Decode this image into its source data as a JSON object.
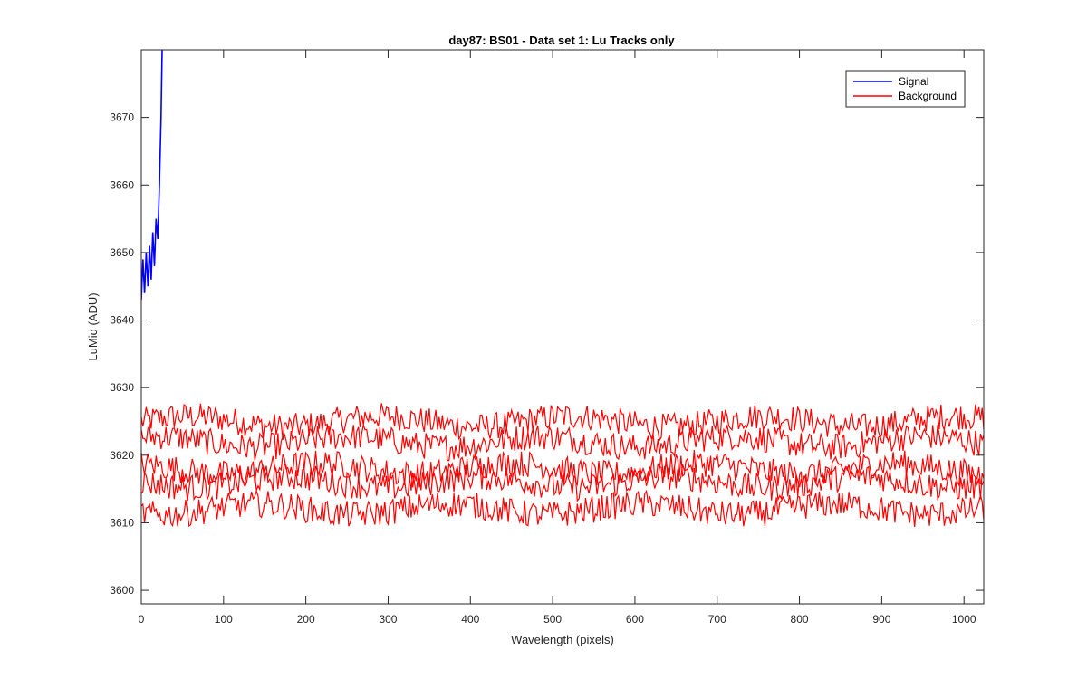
{
  "chart_data": {
    "type": "line",
    "title": "day87: BS01 - Data set 1: Lu Tracks only",
    "xlabel": "Wavelength (pixels)",
    "ylabel": "LuMid (ADU)",
    "xlim": [
      0,
      1024
    ],
    "ylim": [
      3598,
      3680
    ],
    "xticks": [
      0,
      100,
      200,
      300,
      400,
      500,
      600,
      700,
      800,
      900,
      1000
    ],
    "yticks": [
      3600,
      3610,
      3620,
      3630,
      3640,
      3650,
      3660,
      3670
    ],
    "grid": false,
    "legend_position": "top-right",
    "series": [
      {
        "name": "Signal",
        "color": "#0000ff",
        "x": [
          0,
          2,
          4,
          6,
          8,
          10,
          12,
          14,
          16,
          18,
          20,
          22,
          24,
          26
        ],
        "values": [
          3643,
          3649,
          3644,
          3650,
          3645,
          3651,
          3646,
          3653,
          3648,
          3655,
          3652,
          3660,
          3670,
          3685
        ]
      },
      {
        "name": "Background",
        "color": "#ff0000",
        "tracks": [
          {
            "baseline": 3625,
            "noise": 2.0
          },
          {
            "baseline": 3622,
            "noise": 2.0
          },
          {
            "baseline": 3618,
            "noise": 2.0
          },
          {
            "baseline": 3616,
            "noise": 2.0
          },
          {
            "baseline": 3612,
            "noise": 2.0
          }
        ],
        "range": [
          3608,
          3630
        ]
      }
    ]
  }
}
